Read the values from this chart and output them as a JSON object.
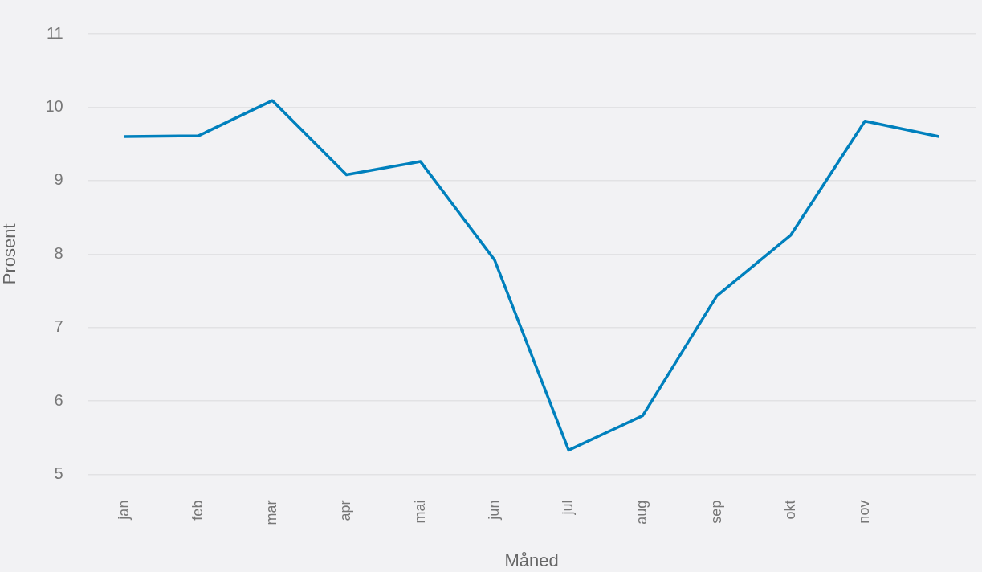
{
  "chart_data": {
    "type": "line",
    "xlabel": "Måned",
    "ylabel": "Prosent",
    "categories": [
      "jan",
      "feb",
      "mar",
      "apr",
      "mai",
      "jun",
      "jul",
      "aug",
      "sep",
      "okt",
      "nov",
      null
    ],
    "series": [
      {
        "color": "#0080bd",
        "values": [
          9.6,
          9.61,
          10.09,
          9.08,
          9.26,
          7.92,
          5.33,
          5.8,
          7.43,
          8.26,
          9.81,
          9.6
        ]
      }
    ],
    "ylim": [
      5,
      11
    ],
    "yticks": [
      5,
      6,
      7,
      8,
      9,
      10,
      11
    ],
    "grid": "y",
    "legend": false,
    "marker": "none",
    "line_style": "solid"
  }
}
